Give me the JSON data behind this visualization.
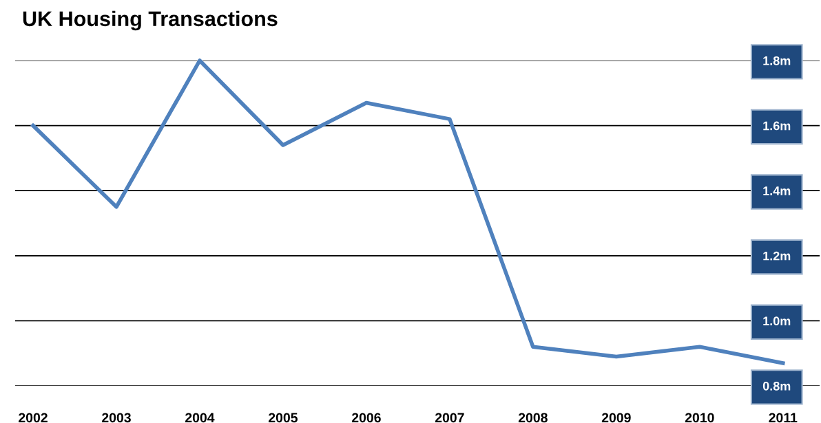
{
  "chart_data": {
    "type": "line",
    "title": "UK Housing Transactions",
    "categories": [
      "2002",
      "2003",
      "2004",
      "2005",
      "2006",
      "2007",
      "2008",
      "2009",
      "2010",
      "2011"
    ],
    "series": [
      {
        "color": "#4f81bd",
        "values": [
          1.6,
          1.35,
          1.8,
          1.54,
          1.67,
          1.62,
          0.92,
          0.89,
          0.92,
          0.87
        ]
      }
    ],
    "ylim": [
      0.8,
      1.8
    ],
    "yticks": [
      {
        "value": 0.8,
        "label": "0.8m"
      },
      {
        "value": 1.0,
        "label": "1.0m"
      },
      {
        "value": 1.2,
        "label": "1.2m"
      },
      {
        "value": 1.4,
        "label": "1.4m"
      },
      {
        "value": 1.6,
        "label": "1.6m"
      },
      {
        "value": 1.8,
        "label": "1.8m"
      }
    ],
    "grid": "y",
    "marker": "none",
    "line_style": "solid",
    "legend": false
  }
}
